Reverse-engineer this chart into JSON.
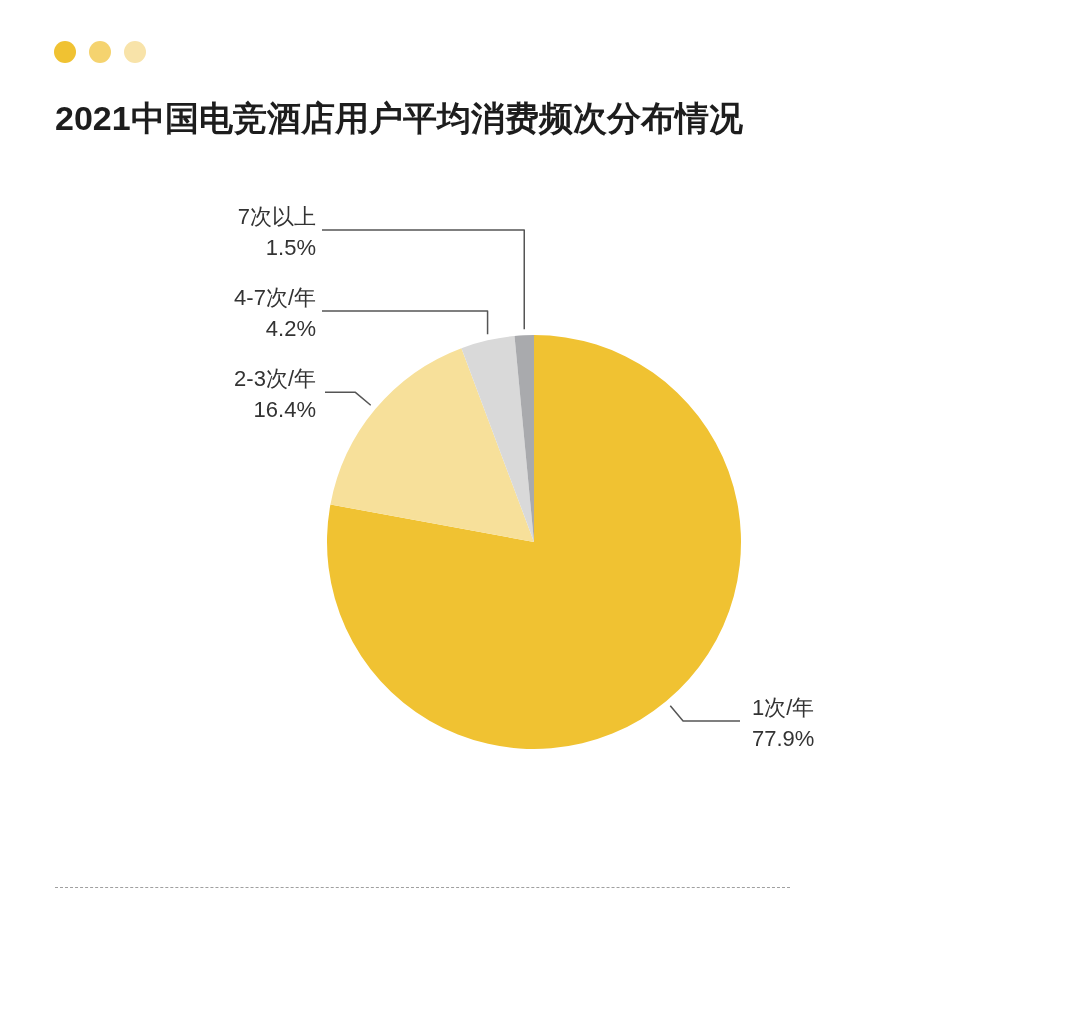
{
  "chart_data": {
    "type": "pie",
    "title": "2021中国电竞酒店用户平均消费频次分布情况",
    "categories": [
      "1次/年",
      "2-3次/年",
      "4-7次/年",
      "7次以上"
    ],
    "values": [
      77.9,
      16.4,
      4.2,
      1.5
    ],
    "colors": [
      "#f0c232",
      "#f7e09a",
      "#d9d9d9",
      "#a9aaad"
    ],
    "value_labels": [
      "77.9%",
      "16.4%",
      "4.2%",
      "1.5%"
    ]
  }
}
